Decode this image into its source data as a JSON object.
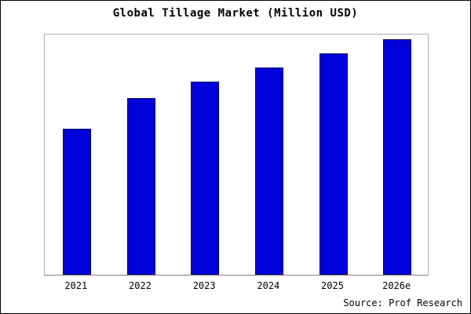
{
  "title": "Global Tillage Market (Million USD)",
  "source_note": "Source: Prof Research",
  "colors": {
    "bar_fill": "#0000d8",
    "bar_border": "#000070",
    "frame_border": "#b0b0b0",
    "background": "#ffffff",
    "text": "#000000"
  },
  "chart_data": {
    "type": "bar",
    "title": "Global Tillage Market (Million USD)",
    "categories": [
      "2021",
      "2022",
      "2023",
      "2024",
      "2025",
      "2026e"
    ],
    "values": [
      62,
      75,
      82,
      88,
      94,
      100
    ],
    "xlabel": "",
    "ylabel": "",
    "ylim": [
      0,
      102.5
    ],
    "grid": false,
    "legend": false,
    "annotation": "Source: Prof Research"
  }
}
